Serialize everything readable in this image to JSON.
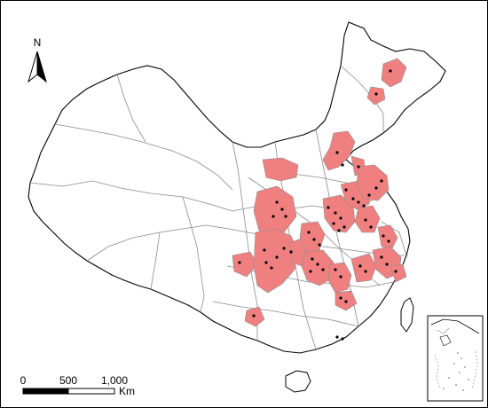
{
  "north_arrow": {
    "label": "N"
  },
  "scale_bar": {
    "ticks": [
      "0",
      "500",
      "1,000"
    ],
    "unit": "Km"
  },
  "colors": {
    "highlight_region": "#f08080",
    "boundary": "#8a8a8a",
    "outline": "#000000",
    "point": "#000000",
    "background": "#ffffff"
  }
}
